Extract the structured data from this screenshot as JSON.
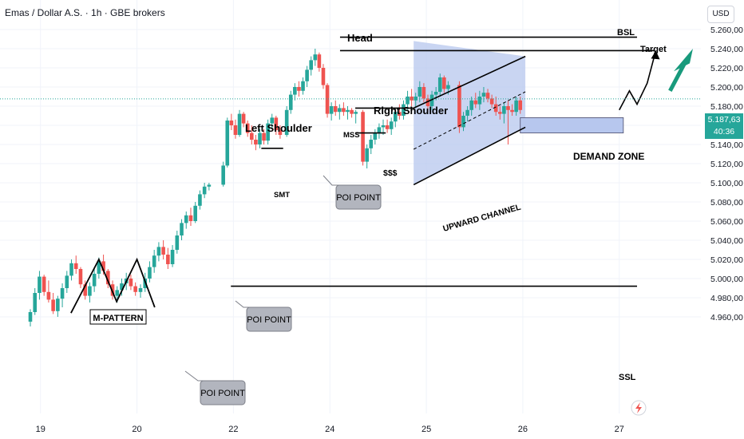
{
  "header": {
    "symbol_title": "Emas / Dollar A.S. · 1h · GBE brokers",
    "currency_button": "USD"
  },
  "price_tag": {
    "price": "5.187,63",
    "countdown": "40:36"
  },
  "colors": {
    "bull": "#26a69a",
    "bear": "#ef5350",
    "channel_fill": "#b7c7ee",
    "demand_fill": "#b7c7ee",
    "arrow": "#189a7c",
    "grid": "#f0f3fa"
  },
  "chart_data": {
    "type": "candlestick",
    "ylim": [
      4950,
      5270
    ],
    "y_ticks": [
      "5.260,00",
      "5.240,00",
      "5.220,00",
      "5.200,00",
      "5.180,00",
      "5.160,00",
      "5.140,00",
      "5.120,00",
      "5.100,00",
      "5.080,00",
      "5.060,00",
      "5.040,00",
      "5.020,00",
      "5.000,00",
      "4.980,00",
      "4.960,00"
    ],
    "y_tick_values": [
      5260,
      5240,
      5220,
      5200,
      5180,
      5160,
      5140,
      5120,
      5100,
      5080,
      5060,
      5040,
      5020,
      5000,
      4980,
      4960
    ],
    "x_ticks": [
      "19",
      "20",
      "22",
      "24",
      "25",
      "26",
      "27"
    ],
    "x_tick_positions": [
      0.2,
      2.1,
      4.0,
      5.9,
      7.8,
      9.7,
      11.6
    ],
    "current_price": 5187.63,
    "candles": [
      [
        0.0,
        4955,
        4968,
        4950,
        4965
      ],
      [
        0.09,
        4965,
        4990,
        4962,
        4985
      ],
      [
        0.18,
        4985,
        5008,
        4978,
        5002
      ],
      [
        0.27,
        5002,
        5004,
        4982,
        4986
      ],
      [
        0.36,
        4986,
        4998,
        4975,
        4978
      ],
      [
        0.45,
        4978,
        4985,
        4963,
        4966
      ],
      [
        0.54,
        4966,
        4982,
        4960,
        4979
      ],
      [
        0.63,
        4979,
        4995,
        4970,
        4990
      ],
      [
        0.72,
        4990,
        5008,
        4985,
        5003
      ],
      [
        0.81,
        5003,
        5020,
        4998,
        5016
      ],
      [
        0.9,
        5016,
        5024,
        5005,
        5010
      ],
      [
        0.99,
        5010,
        5012,
        4990,
        4994
      ],
      [
        1.08,
        4994,
        4998,
        4978,
        4982
      ],
      [
        1.17,
        4982,
        4996,
        4975,
        4992
      ],
      [
        1.26,
        4992,
        5010,
        4986,
        5005
      ],
      [
        1.35,
        5005,
        5022,
        5000,
        5018
      ],
      [
        1.44,
        5018,
        5025,
        5004,
        5008
      ],
      [
        1.53,
        5008,
        5010,
        4990,
        4994
      ],
      [
        1.62,
        4994,
        4998,
        4978,
        4982
      ],
      [
        1.71,
        4982,
        4992,
        4975,
        4988
      ],
      [
        1.8,
        4988,
        5000,
        4982,
        4995
      ],
      [
        1.89,
        4995,
        5006,
        4988,
        5000
      ],
      [
        1.98,
        5000,
        5004,
        4988,
        4992
      ],
      [
        2.07,
        4992,
        4996,
        4982,
        4986
      ],
      [
        2.17,
        4986,
        4994,
        4980,
        4990
      ],
      [
        2.26,
        4990,
        5006,
        4986,
        5000
      ],
      [
        2.35,
        5000,
        5018,
        4996,
        5012
      ],
      [
        2.44,
        5012,
        5030,
        5006,
        5024
      ],
      [
        2.53,
        5024,
        5038,
        5018,
        5033
      ],
      [
        2.62,
        5033,
        5040,
        5020,
        5025
      ],
      [
        2.71,
        5025,
        5032,
        5010,
        5015
      ],
      [
        2.8,
        5015,
        5035,
        5012,
        5030
      ],
      [
        2.89,
        5030,
        5050,
        5026,
        5045
      ],
      [
        2.98,
        5045,
        5062,
        5040,
        5058
      ],
      [
        3.07,
        5058,
        5070,
        5052,
        5066
      ],
      [
        3.16,
        5066,
        5074,
        5055,
        5060
      ],
      [
        3.25,
        5060,
        5080,
        5058,
        5076
      ],
      [
        3.34,
        5076,
        5092,
        5072,
        5088
      ],
      [
        3.43,
        5088,
        5100,
        5084,
        5096
      ],
      [
        3.52,
        5096,
        5100,
        5092,
        5098
      ],
      [
        3.8,
        5098,
        5122,
        5096,
        5118
      ],
      [
        3.88,
        5118,
        5168,
        5116,
        5165
      ],
      [
        3.96,
        5165,
        5172,
        5155,
        5160
      ],
      [
        4.04,
        5160,
        5166,
        5146,
        5150
      ],
      [
        4.12,
        5150,
        5176,
        5148,
        5172
      ],
      [
        4.2,
        5172,
        5174,
        5158,
        5162
      ],
      [
        4.28,
        5162,
        5165,
        5148,
        5152
      ],
      [
        4.36,
        5152,
        5160,
        5140,
        5145
      ],
      [
        4.44,
        5145,
        5150,
        5134,
        5140
      ],
      [
        4.52,
        5140,
        5156,
        5136,
        5152
      ],
      [
        4.6,
        5152,
        5156,
        5140,
        5144
      ],
      [
        4.68,
        5144,
        5166,
        5140,
        5162
      ],
      [
        4.76,
        5162,
        5172,
        5156,
        5168
      ],
      [
        4.84,
        5168,
        5170,
        5150,
        5155
      ],
      [
        4.92,
        5155,
        5160,
        5146,
        5150
      ],
      [
        5.05,
        5150,
        5180,
        5148,
        5176
      ],
      [
        5.13,
        5176,
        5196,
        5172,
        5192
      ],
      [
        5.21,
        5192,
        5204,
        5186,
        5200
      ],
      [
        5.29,
        5200,
        5206,
        5190,
        5196
      ],
      [
        5.37,
        5196,
        5210,
        5192,
        5206
      ],
      [
        5.45,
        5206,
        5222,
        5200,
        5218
      ],
      [
        5.53,
        5218,
        5232,
        5212,
        5228
      ],
      [
        5.61,
        5228,
        5240,
        5222,
        5234
      ],
      [
        5.69,
        5234,
        5236,
        5216,
        5220
      ],
      [
        5.77,
        5220,
        5224,
        5198,
        5202
      ],
      [
        5.85,
        5202,
        5204,
        5168,
        5172
      ],
      [
        5.93,
        5172,
        5184,
        5165,
        5180
      ],
      [
        6.01,
        5180,
        5186,
        5170,
        5174
      ],
      [
        6.09,
        5174,
        5182,
        5166,
        5178
      ],
      [
        6.17,
        5178,
        5184,
        5170,
        5174
      ],
      [
        6.25,
        5174,
        5180,
        5166,
        5176
      ],
      [
        6.33,
        5176,
        5178,
        5168,
        5172
      ],
      [
        6.41,
        5172,
        5176,
        5162,
        5174
      ],
      [
        6.55,
        5174,
        5176,
        5118,
        5122
      ],
      [
        6.63,
        5122,
        5140,
        5115,
        5136
      ],
      [
        6.71,
        5136,
        5150,
        5130,
        5145
      ],
      [
        6.79,
        5145,
        5156,
        5140,
        5152
      ],
      [
        6.87,
        5152,
        5162,
        5146,
        5158
      ],
      [
        6.95,
        5158,
        5166,
        5150,
        5160
      ],
      [
        7.03,
        5160,
        5166,
        5152,
        5156
      ],
      [
        7.11,
        5156,
        5168,
        5150,
        5164
      ],
      [
        7.19,
        5164,
        5178,
        5158,
        5174
      ],
      [
        7.27,
        5174,
        5182,
        5166,
        5170
      ],
      [
        7.35,
        5170,
        5186,
        5166,
        5182
      ],
      [
        7.43,
        5182,
        5196,
        5176,
        5190
      ],
      [
        7.51,
        5190,
        5198,
        5180,
        5186
      ],
      [
        7.59,
        5186,
        5194,
        5178,
        5190
      ],
      [
        7.67,
        5190,
        5206,
        5184,
        5200
      ],
      [
        7.75,
        5200,
        5204,
        5184,
        5188
      ],
      [
        7.83,
        5188,
        5192,
        5174,
        5180
      ],
      [
        7.91,
        5180,
        5196,
        5176,
        5192
      ],
      [
        7.99,
        5192,
        5200,
        5186,
        5195
      ],
      [
        8.07,
        5195,
        5214,
        5190,
        5210
      ],
      [
        8.15,
        5210,
        5212,
        5194,
        5198
      ],
      [
        8.23,
        5198,
        5206,
        5192,
        5202
      ],
      [
        8.45,
        5202,
        5206,
        5152,
        5158
      ],
      [
        8.53,
        5158,
        5174,
        5154,
        5170
      ],
      [
        8.61,
        5170,
        5180,
        5164,
        5176
      ],
      [
        8.69,
        5176,
        5190,
        5170,
        5186
      ],
      [
        8.77,
        5186,
        5194,
        5178,
        5182
      ],
      [
        8.85,
        5182,
        5196,
        5176,
        5190
      ],
      [
        8.93,
        5190,
        5200,
        5184,
        5194
      ],
      [
        9.01,
        5194,
        5198,
        5184,
        5188
      ],
      [
        9.09,
        5188,
        5192,
        5178,
        5182
      ],
      [
        9.17,
        5182,
        5190,
        5170,
        5174
      ],
      [
        9.25,
        5174,
        5180,
        5166,
        5172
      ],
      [
        9.33,
        5172,
        5184,
        5162,
        5180
      ],
      [
        9.41,
        5180,
        5186,
        5140,
        5176
      ],
      [
        9.49,
        5176,
        5182,
        5170,
        5174
      ],
      [
        9.57,
        5174,
        5190,
        5170,
        5186
      ],
      [
        9.65,
        5186,
        5190,
        5172,
        5176
      ]
    ],
    "annotations": {
      "head": "Head",
      "bsl": "BSL",
      "target": "Target",
      "right_shoulder": "Right Shoulder",
      "left_shoulder": "Left Shoulder",
      "mss": "MSS",
      "sss": "$$$",
      "smt": "SMT",
      "demand_zone": "DEMAND ZONE",
      "upward_channel": "UPWARD CHANNEL",
      "m_pattern": "M-PATTERN",
      "ssl": "SSL",
      "poi_point": "POI POINT",
      "bsl_level": 5252,
      "target_level": 5238,
      "ssl_level": 4992,
      "demand_zone_range": [
        5152,
        5168
      ],
      "mss_level": 5178,
      "sss_level": 5152
    }
  }
}
